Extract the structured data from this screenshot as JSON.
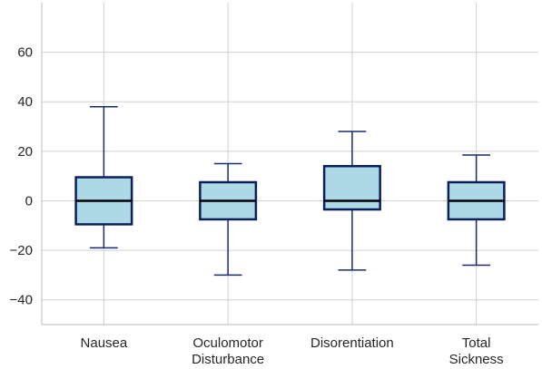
{
  "chart_data": {
    "type": "box",
    "title": "",
    "xlabel": "",
    "ylabel": "",
    "ylim": [
      -50,
      80
    ],
    "yticks": [
      -40,
      -20,
      0,
      20,
      40,
      60
    ],
    "grid": true,
    "categories": [
      [
        "Nausea"
      ],
      [
        "Oculomotor",
        "Disturbance"
      ],
      [
        "Disorentiation"
      ],
      [
        "Total",
        "Sickness"
      ]
    ],
    "boxes": [
      {
        "whisker_low": -19,
        "q1": -9.5,
        "median": 0,
        "q3": 9.5,
        "whisker_high": 38
      },
      {
        "whisker_low": -30,
        "q1": -7.5,
        "median": 0,
        "q3": 7.5,
        "whisker_high": 15
      },
      {
        "whisker_low": -28,
        "q1": -3.5,
        "median": 0,
        "q3": 14,
        "whisker_high": 28
      },
      {
        "whisker_low": -26,
        "q1": -7.5,
        "median": 0,
        "q3": 7.5,
        "whisker_high": 18.5
      }
    ],
    "colors": {
      "box_fill": "#add8e6",
      "box_edge": "#0b1f5c",
      "whisker": "#1a2a6e",
      "median": "#000000",
      "grid": "#d0d0d0",
      "axis": "#c8c8c8"
    }
  }
}
